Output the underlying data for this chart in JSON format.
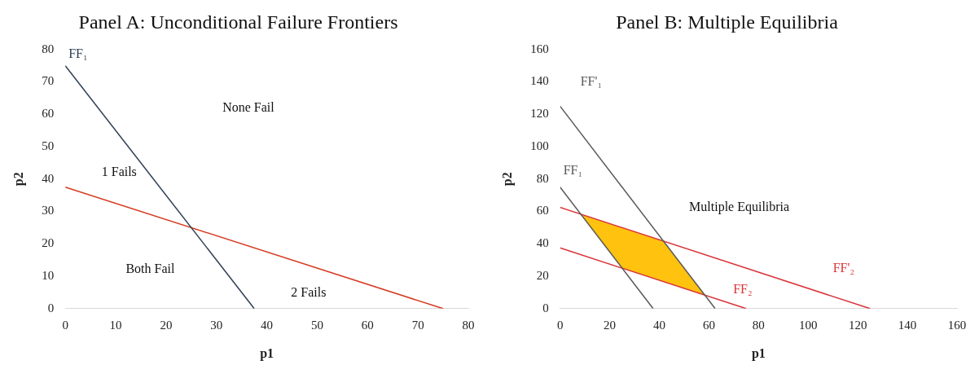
{
  "chart_data": [
    {
      "type": "line",
      "title": "Panel A: Unconditional Failure Frontiers",
      "xlabel": "p1",
      "ylabel": "p2",
      "series": [
        {
          "name": "FF₁",
          "color": "#2e3f55",
          "x": [
            0,
            37.5
          ],
          "values": [
            75,
            0
          ]
        },
        {
          "color": "#d63a1f",
          "x": [
            0,
            75
          ],
          "values": [
            37.5,
            0
          ]
        }
      ],
      "xlim": [
        0,
        80
      ],
      "xticks": [
        0,
        10,
        20,
        30,
        40,
        50,
        60,
        70,
        80
      ],
      "ylim": [
        0,
        80
      ],
      "yticks": [
        0,
        10,
        20,
        30,
        40,
        50,
        60,
        70,
        80
      ],
      "grid": false,
      "legend": false,
      "marker": "none",
      "line_style": "solid",
      "annotations": [
        "None Fail",
        "1 Fails",
        "Both Fail",
        "2 Fails"
      ]
    },
    {
      "type": "line",
      "title": "Panel B: Multiple Equilibria",
      "xlabel": "p1",
      "ylabel": "p2",
      "series": [
        {
          "type": "area",
          "color": "#ffc20e",
          "x": [
            8.3,
            25,
            58.3,
            41.7,
            8.3
          ],
          "values": [
            58.3,
            25,
            8.3,
            41.7,
            58.3
          ]
        },
        {
          "name": "FF₁",
          "color": "#595959",
          "x": [
            0,
            37.5
          ],
          "values": [
            75,
            0
          ]
        },
        {
          "name": "FF'₁",
          "color": "#595959",
          "x": [
            0,
            62.5
          ],
          "values": [
            125,
            0
          ]
        },
        {
          "name": "FF₂",
          "color": "#d9343a",
          "x": [
            0,
            75
          ],
          "values": [
            37.5,
            0
          ]
        },
        {
          "name": "FF'₂",
          "color": "#d9343a",
          "x": [
            0,
            125
          ],
          "values": [
            62.5,
            0
          ]
        }
      ],
      "xlim": [
        0,
        160
      ],
      "xticks": [
        0,
        20,
        40,
        60,
        80,
        100,
        120,
        140,
        160
      ],
      "ylim": [
        0,
        160
      ],
      "yticks": [
        0,
        20,
        40,
        60,
        80,
        100,
        120,
        140,
        160
      ],
      "grid": false,
      "legend": false,
      "marker": "none",
      "line_style": "solid",
      "annotations": [
        "Multiple Equilibria"
      ]
    }
  ]
}
